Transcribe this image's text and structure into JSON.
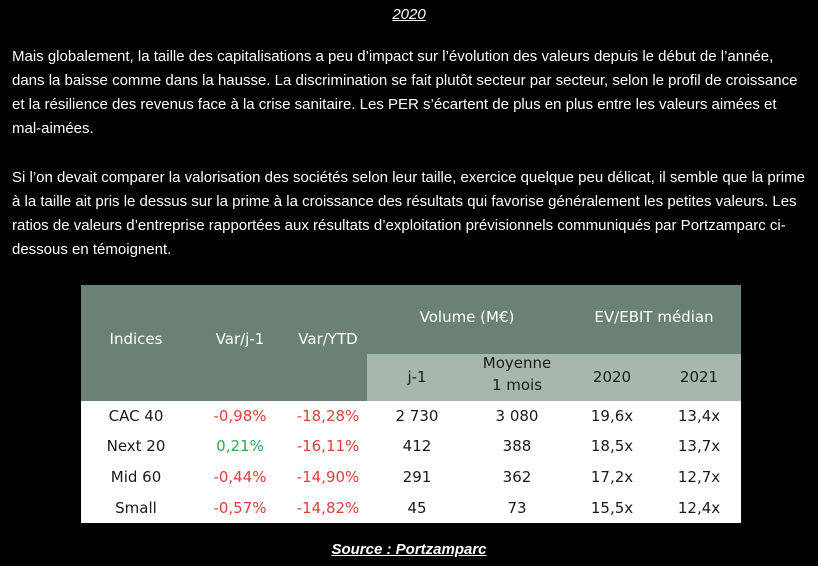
{
  "year_title": "2020",
  "paragraphs": [
    "Mais globalement, la taille des capitalisations a peu d’impact sur l’évolution des valeurs depuis le début de l’année, dans la baisse comme dans la hausse. La discrimination se fait plutôt secteur par secteur, selon le profil de croissance et la résilience des revenus face à la crise sanitaire. Les PER s’écartent de plus en plus entre les valeurs aimées et mal-aimées.",
    "Si l’on devait comparer la valorisation des sociétés selon leur taille, exercice quelque peu délicat, il semble que la prime à la taille ait pris le dessus sur la prime à la croissance des résultats qui favorise généralement les petites valeurs. Les ratios de valeurs d’entreprise rapportées aux résultats d’exploitation prévisionnels communiqués par Portzamparc ci-dessous en témoignent."
  ],
  "table": {
    "headers": {
      "indices": "Indices",
      "var_j1": "Var/j-1",
      "var_ytd": "Var/YTD",
      "volume": "Volume (M€)",
      "ev_ebit": "EV/EBIT médian",
      "vol_j1": "j-1",
      "vol_moy_l1": "Moyenne",
      "vol_moy_l2": "1 mois",
      "y2020": "2020",
      "y2021": "2021"
    },
    "rows": [
      {
        "index": "CAC 40",
        "var_j1": "-0,98%",
        "var_j1_sign": "neg",
        "var_ytd": "-18,28%",
        "vol_j1": "2 730",
        "vol_moy": "3 080",
        "ev2020": "19,6x",
        "ev2021": "13,4x"
      },
      {
        "index": "Next 20",
        "var_j1": "0,21%",
        "var_j1_sign": "pos",
        "var_ytd": "-16,11%",
        "vol_j1": "412",
        "vol_moy": "388",
        "ev2020": "18,5x",
        "ev2021": "13,7x"
      },
      {
        "index": "Mid 60",
        "var_j1": "-0,44%",
        "var_j1_sign": "neg",
        "var_ytd": "-14,90%",
        "vol_j1": "291",
        "vol_moy": "362",
        "ev2020": "17,2x",
        "ev2021": "12,7x"
      },
      {
        "index": "Small",
        "var_j1": "-0,57%",
        "var_j1_sign": "neg",
        "var_ytd": "-14,82%",
        "vol_j1": "45",
        "vol_moy": "73",
        "ev2020": "15,5x",
        "ev2021": "12,4x"
      }
    ]
  },
  "source": "Source : Portzamparc",
  "colors": {
    "header_dark": "#6b8173",
    "header_light": "#a6b8ac",
    "negative": "#e0403a",
    "positive": "#2daa4f"
  }
}
